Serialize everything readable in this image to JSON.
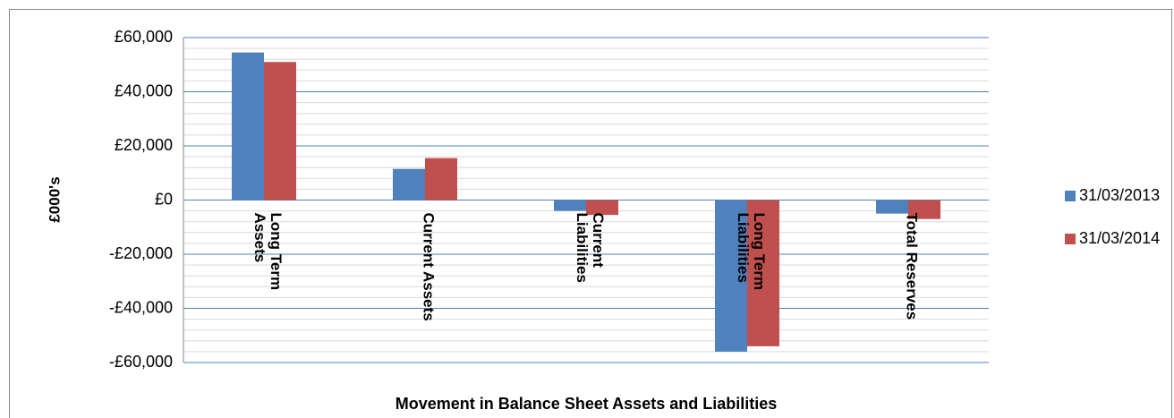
{
  "chart_data": {
    "type": "bar",
    "title": "Movement in Balance Sheet Assets and Liabilities",
    "y_label": "£000's",
    "categories": [
      "Long Term Assets",
      "Current Assets",
      "Current Liabilities",
      "Long Term Liabilities",
      "Total Reserves"
    ],
    "series": [
      {
        "name": "31/03/2013",
        "color": "#4f81bd",
        "values": [
          54500,
          11500,
          -4000,
          -56000,
          -5000
        ]
      },
      {
        "name": "31/03/2014",
        "color": "#c0504d",
        "values": [
          51000,
          15500,
          -5500,
          -54000,
          -7000
        ]
      }
    ],
    "ylim": [
      -60000,
      60000
    ],
    "yticks": [
      {
        "value": -60000,
        "label": "-£60,000"
      },
      {
        "value": -40000,
        "label": "-£40,000"
      },
      {
        "value": -20000,
        "label": "-£20,000"
      },
      {
        "value": 0,
        "label": "£0"
      },
      {
        "value": 20000,
        "label": "£20,000"
      },
      {
        "value": 40000,
        "label": "£40,000"
      },
      {
        "value": 60000,
        "label": "£60,000"
      }
    ],
    "y_minor_ticks": [
      -56000,
      -52000,
      -48000,
      -44000,
      -36000,
      -32000,
      -28000,
      -24000,
      -16000,
      -12000,
      -8000,
      -4000,
      4000,
      8000,
      12000,
      16000,
      24000,
      28000,
      32000,
      36000,
      44000,
      48000,
      52000,
      56000
    ],
    "grid": true,
    "legend": "right"
  }
}
